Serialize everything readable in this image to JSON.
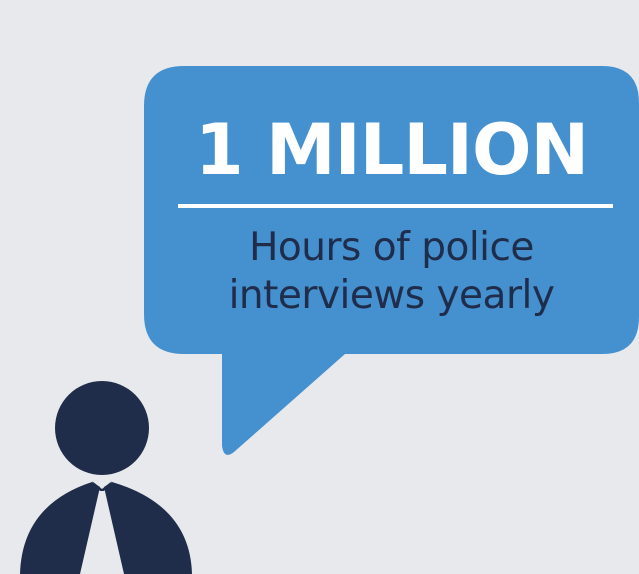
{
  "stat": {
    "headline": "1 MILLION",
    "caption_line_1": "Hours of police",
    "caption_line_2": "interviews yearly"
  },
  "colors": {
    "background": "#e8e9ec",
    "bubble": "#4590cf",
    "figure": "#1f2d4b",
    "headline_text": "#ffffff",
    "caption_text": "#1f2d4b"
  },
  "icons": {
    "bubble": "speech-bubble-icon",
    "person": "person-icon"
  }
}
